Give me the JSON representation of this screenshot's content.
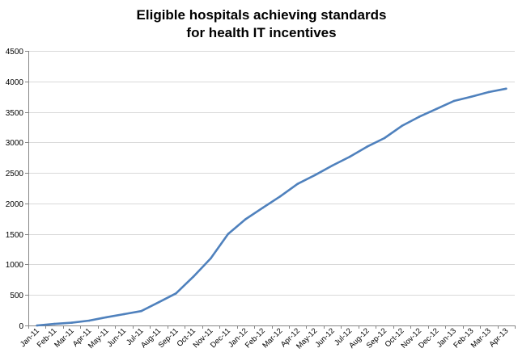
{
  "chart_data": {
    "type": "line",
    "title": [
      "Eligible hospitals achieving standards",
      "for health IT incentives"
    ],
    "xlabel": "",
    "ylabel": "",
    "categories": [
      "Jan-11",
      "Feb-11",
      "Mar-11",
      "Apr-11",
      "May-11",
      "Jun-11",
      "Jul-11",
      "Aug-11",
      "Sep-11",
      "Oct-11",
      "Nov-11",
      "Dec-11",
      "Jan-12",
      "Feb-12",
      "Mar-12",
      "Apr-12",
      "May-12",
      "Jun-12",
      "Jul-12",
      "Aug-12",
      "Sep-12",
      "Oct-12",
      "Nov-12",
      "Dec-12",
      "Jan-13",
      "Feb-13",
      "Mar-13",
      "Apr-13"
    ],
    "series": [
      {
        "values": [
          0,
          25,
          45,
          80,
          135,
          185,
          235,
          380,
          525,
          800,
          1100,
          1500,
          1740,
          1930,
          2115,
          2320,
          2465,
          2620,
          2765,
          2930,
          3070,
          3270,
          3420,
          3550,
          3680,
          3750,
          3825,
          3880
        ]
      }
    ],
    "ylim": [
      0,
      4500
    ],
    "yticks": [
      0,
      500,
      1000,
      1500,
      2000,
      2500,
      3000,
      3500,
      4000,
      4500
    ],
    "grid": true,
    "legend": "none",
    "line_color": "#4f81bd",
    "gridline_color": "#d9d9d9",
    "axis_color": "#868686"
  }
}
